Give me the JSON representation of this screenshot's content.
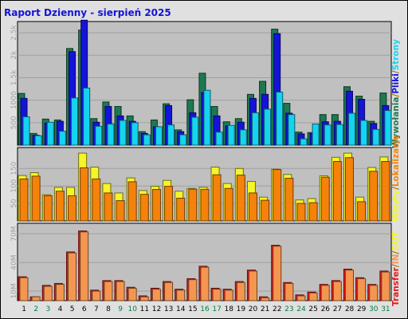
{
  "chart_data": {
    "type": "bar",
    "title": "Raport Dzienny -  sierpień 2025",
    "categories": [
      "1",
      "2",
      "3",
      "4",
      "5",
      "6",
      "7",
      "8",
      "9",
      "10",
      "11",
      "12",
      "13",
      "14",
      "15",
      "16",
      "17",
      "18",
      "19",
      "20",
      "21",
      "22",
      "23",
      "24",
      "25",
      "26",
      "27",
      "28",
      "29",
      "30",
      "31"
    ],
    "weekend_days": [
      "2",
      "3",
      "9",
      "10",
      "16",
      "17",
      "23",
      "24",
      "30",
      "31"
    ],
    "panels": [
      {
        "name": "requests",
        "ylim": [
          0,
          2750
        ],
        "ticks": [
          "500",
          "1000",
          "1.5k",
          "2k",
          "2.5k"
        ],
        "tick_values": [
          500,
          1000,
          1500,
          2000,
          2500
        ],
        "series": [
          {
            "name": "Wywołania",
            "color": "#1e7850",
            "values": [
              1150,
              260,
              580,
              560,
              2150,
              2560,
              590,
              960,
              860,
              650,
              300,
              560,
              920,
              340,
              1010,
              1600,
              860,
              520,
              590,
              1130,
              1420,
              2580,
              930,
              290,
              280,
              680,
              680,
              1300,
              1090,
              530,
              1160
            ]
          },
          {
            "name": "Pliki",
            "color": "#1414d8",
            "values": [
              1040,
              220,
              490,
              530,
              2080,
              2780,
              510,
              860,
              650,
              530,
              260,
              410,
              880,
              300,
              720,
              1170,
              650,
              430,
              510,
              1040,
              1130,
              2480,
              710,
              250,
              260,
              520,
              530,
              1200,
              1020,
              480,
              880
            ]
          },
          {
            "name": "Strony",
            "color": "#16d3f0",
            "values": [
              630,
              210,
              510,
              310,
              1050,
              1270,
              420,
              470,
              550,
              500,
              230,
              410,
              450,
              230,
              620,
              1220,
              290,
              440,
              340,
              720,
              800,
              1180,
              680,
              140,
              470,
              450,
              460,
              710,
              550,
              350,
              770
            ]
          }
        ]
      },
      {
        "name": "visitors",
        "ylim": [
          0,
          210
        ],
        "ticks": [
          "50",
          "100",
          "150"
        ],
        "tick_values": [
          50,
          100,
          150
        ],
        "series": [
          {
            "name": "Wizyty",
            "color": "#f5f528",
            "values": [
              130,
              138,
              75,
              96,
              96,
              194,
              154,
              107,
              80,
              123,
              87,
              99,
              116,
              85,
              93,
              96,
              154,
              107,
              150,
              113,
              68,
              148,
              133,
              60,
              64,
              129,
              182,
              194,
              68,
              153,
              183
            ]
          },
          {
            "name": "Lokalizacje",
            "color": "#f5820a",
            "values": [
              120,
              128,
              72,
              85,
              72,
              152,
              120,
              80,
              58,
              112,
              76,
              90,
              99,
              65,
              91,
              90,
              132,
              93,
              131,
              80,
              59,
              147,
              122,
              50,
              52,
              125,
              170,
              181,
              55,
              142,
              170
            ]
          }
        ]
      },
      {
        "name": "transfer",
        "ylim": [
          0,
          81
        ],
        "ticks": [
          "10M",
          "40M",
          "70M"
        ],
        "tick_values": [
          10,
          40,
          70
        ],
        "series": [
          {
            "name": "Transfer",
            "color": "#e61919",
            "values": [
              25,
              4,
              16,
              18,
              51,
              73,
              11,
              21,
              21,
              14,
              5,
              13,
              20,
              12,
              23,
              36,
              13,
              12,
              20,
              32,
              4,
              58,
              19,
              6,
              9,
              17,
              21,
              33,
              24,
              17,
              31
            ]
          },
          {
            "name": "IN",
            "color": "#f59650",
            "values": [
              24,
              4,
              15,
              17,
              50,
              72,
              10,
              20,
              20,
              13,
              4,
              12,
              19,
              11,
              22,
              35,
              12,
              11,
              19,
              31,
              3,
              57,
              18,
              5,
              8,
              16,
              20,
              32,
              23,
              16,
              30
            ]
          }
        ]
      }
    ],
    "legends": {
      "top": [
        {
          "text": "Wywołania",
          "color": "#1e7850"
        },
        {
          "text": "/",
          "color": "#a06e00"
        },
        {
          "text": "Pliki",
          "color": "#1414d8"
        },
        {
          "text": "/",
          "color": "#a06e00"
        },
        {
          "text": "Strony",
          "color": "#16d3f0"
        }
      ],
      "middle": [
        {
          "text": "Wizyty",
          "color": "#f5f528"
        },
        {
          "text": "/",
          "color": "#a06e00"
        },
        {
          "text": "Lokalizacje",
          "color": "#f5820a"
        }
      ],
      "bottom": [
        {
          "text": "Transfer",
          "color": "#e61919"
        },
        {
          "text": "/",
          "color": "#a06e00"
        },
        {
          "text": "IN",
          "color": "#f59650"
        },
        {
          "text": "/",
          "color": "#a06e00"
        },
        {
          "text": "OUT",
          "color": "#f5f528"
        }
      ]
    },
    "colors": {
      "background": "#e0e0e0",
      "plot": "#c0c0c0",
      "weekday_label": "#000000",
      "weekend_label": "#008040",
      "grid": "#a0a0a0"
    }
  }
}
